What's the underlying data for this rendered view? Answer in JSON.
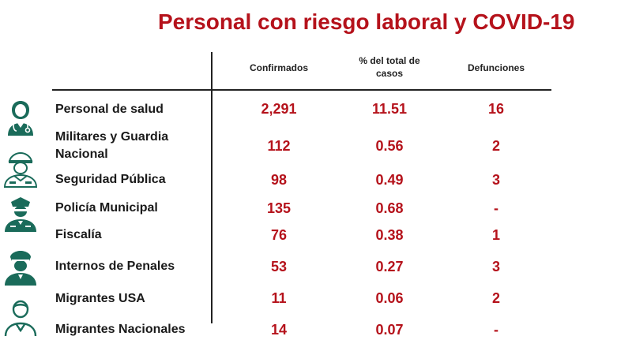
{
  "title": "Personal con riesgo laboral y COVID-19",
  "columns": {
    "confirmados": "Confirmados",
    "porcentaje_line1": "% del total de",
    "porcentaje_line2": "casos",
    "defunciones": "Defunciones"
  },
  "colors": {
    "accent": "#b5121b",
    "icon": "#1a6b5a"
  },
  "rows": [
    {
      "label": "Personal de salud",
      "confirmados": "2,291",
      "porcentaje": "11.51",
      "defunciones": "16",
      "icon": "doctor-icon"
    },
    {
      "label": "Militares y Guardia Nacional",
      "confirmados": "112",
      "porcentaje": "0.56",
      "defunciones": "2",
      "icon": "soldier-icon"
    },
    {
      "label": "Seguridad Pública",
      "confirmados": "98",
      "porcentaje": "0.49",
      "defunciones": "3",
      "icon": "security-officer-icon"
    },
    {
      "label": "Policía Municipal",
      "confirmados": "135",
      "porcentaje": "0.68",
      "defunciones": "-",
      "icon": "police-officer-icon"
    },
    {
      "label": "Fiscalía",
      "confirmados": "76",
      "porcentaje": "0.38",
      "defunciones": "1",
      "icon": ""
    },
    {
      "label": "Internos de Penales",
      "confirmados": "53",
      "porcentaje": "0.27",
      "defunciones": "3",
      "icon": "guard-icon"
    },
    {
      "label": "Migrantes USA",
      "confirmados": "11",
      "porcentaje": "0.06",
      "defunciones": "2",
      "icon": "scout-person-icon"
    },
    {
      "label": "Migrantes Nacionales",
      "confirmados": "14",
      "porcentaje": "0.07",
      "defunciones": "-",
      "icon": ""
    }
  ]
}
